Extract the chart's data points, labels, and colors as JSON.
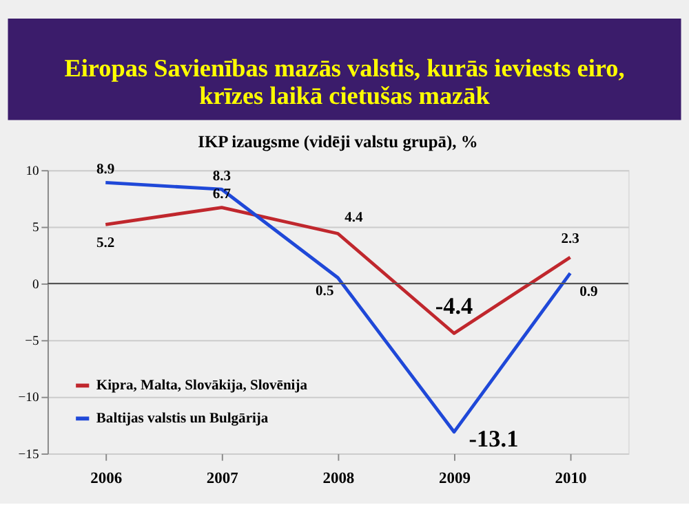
{
  "chart_data": {
    "type": "line",
    "title": "Eiropas Savienības mazās valstis, kurās ieviests eiro,\nkrīzes laikā cietušas mazāk",
    "subtitle": "IKP izaugsme (vidēji valstu grupā), %",
    "categories": [
      "2006",
      "2007",
      "2008",
      "2009",
      "2010"
    ],
    "series": [
      {
        "name": "Kipra, Malta, Slovākija, Slovēnija",
        "color": "#c0272d",
        "values": [
          5.2,
          6.7,
          4.4,
          -4.4,
          2.3
        ]
      },
      {
        "name": "Baltijas valstis un Bulgārija",
        "color": "#1f48d8",
        "values": [
          8.9,
          8.3,
          0.5,
          -13.1,
          0.9
        ]
      }
    ],
    "ylim": [
      -15,
      10
    ],
    "yticks": [
      -15,
      -10,
      -5,
      0,
      5,
      10
    ],
    "grid": "y",
    "legend": "bottom left",
    "data_labels": true,
    "marker": "none",
    "line_style": "solid"
  }
}
